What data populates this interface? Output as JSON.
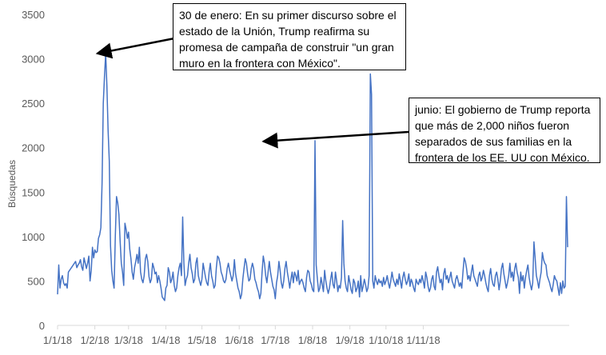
{
  "chart_data": {
    "type": "line",
    "title": "",
    "xlabel": "",
    "ylabel": "Búsquedas",
    "ylim": [
      0,
      3500
    ],
    "yticks": [
      0,
      500,
      1000,
      1500,
      2000,
      2500,
      3000,
      3500
    ],
    "x_tick_labels": [
      "1/1/18",
      "1/2/18",
      "1/3/18",
      "1/4/18",
      "1/5/18",
      "1/6/18",
      "1/7/18",
      "1/8/18",
      "1/9/18",
      "1/10/18",
      "1/11/18"
    ],
    "grid": false,
    "legend": "none",
    "line_color": "#4472c4",
    "series": [
      {
        "x_start": "2018-01-01",
        "x_interval_days": 1,
        "values": [
          350,
          680,
          420,
          520,
          560,
          480,
          450,
          470,
          420,
          600,
          620,
          640,
          660,
          680,
          700,
          720,
          650,
          680,
          700,
          740,
          660,
          620,
          760,
          700,
          640,
          700,
          780,
          500,
          620,
          880,
          760,
          850,
          820,
          830,
          980,
          1020,
          1100,
          1600,
          2500,
          2800,
          3060,
          2700,
          2200,
          1850,
          900,
          620,
          500,
          420,
          1000,
          1450,
          1380,
          1250,
          950,
          700,
          600,
          450,
          1150,
          1080,
          980,
          1050,
          860,
          750,
          600,
          520,
          650,
          720,
          800,
          700,
          880,
          600,
          520,
          480,
          560,
          750,
          800,
          720,
          550,
          480,
          520,
          700,
          650,
          580,
          600,
          480,
          560,
          500,
          420,
          320,
          300,
          280,
          420,
          450,
          650,
          600,
          480,
          520,
          600,
          450,
          380,
          420,
          560,
          650,
          700,
          560,
          1220,
          700,
          450,
          520,
          560,
          700,
          800,
          650,
          580,
          480,
          520,
          700,
          760,
          560,
          500,
          450,
          520,
          700,
          620,
          540,
          480,
          450,
          600,
          700,
          560,
          500,
          420,
          450,
          650,
          780,
          760,
          700,
          600,
          560,
          500,
          480,
          520,
          640,
          700,
          620,
          560,
          500,
          560,
          740,
          580,
          500,
          420,
          380,
          300,
          350,
          520,
          640,
          750,
          700,
          580,
          500,
          520,
          640,
          700,
          640,
          520,
          480,
          420,
          380,
          300,
          360,
          600,
          780,
          700,
          560,
          480,
          600,
          720,
          600,
          520,
          440,
          400,
          300,
          480,
          560,
          720,
          620,
          480,
          420,
          500,
          640,
          720,
          600,
          520,
          420,
          520,
          600,
          480,
          600,
          560,
          500,
          620,
          460,
          500,
          520,
          480,
          420,
          380,
          540,
          620,
          600,
          500,
          460,
          400,
          380,
          2080,
          680,
          520,
          380,
          420,
          540,
          460,
          380,
          620,
          500,
          420,
          360,
          420,
          520,
          600,
          460,
          420,
          600,
          500,
          380,
          450,
          420,
          540,
          1180,
          700,
          500,
          420,
          380,
          560,
          480,
          400,
          360,
          520,
          480,
          380,
          420,
          500,
          320,
          560,
          380,
          440,
          520,
          460,
          380,
          420,
          560,
          2830,
          2600,
          500,
          420,
          560,
          500,
          460,
          520,
          480,
          500,
          440,
          540,
          460,
          500,
          560,
          480,
          420,
          500,
          600,
          520,
          480,
          440,
          520,
          460,
          580,
          500,
          420,
          540,
          600,
          520,
          460,
          500,
          580,
          440,
          520,
          480,
          420,
          380,
          520,
          480,
          460,
          520,
          480,
          560,
          500,
          420,
          600,
          540,
          440,
          380,
          420,
          520,
          560,
          440,
          400,
          600,
          660,
          560,
          480,
          520,
          400,
          580,
          640,
          520,
          560,
          480,
          540,
          600,
          500,
          460,
          420,
          520,
          560,
          500,
          440,
          480,
          420,
          600,
          760,
          720,
          640,
          520,
          560,
          500,
          600,
          680,
          560,
          520,
          480,
          440,
          560,
          600,
          500,
          540,
          620,
          560,
          480,
          420,
          380,
          560,
          640,
          520,
          460,
          440,
          560,
          600,
          520,
          400,
          500,
          640,
          700,
          580,
          500,
          420,
          480,
          560,
          700,
          540,
          600,
          500,
          640,
          700,
          600,
          540,
          360,
          600,
          500,
          560,
          420,
          540,
          620,
          680,
          540,
          460,
          400,
          480,
          940,
          760,
          560,
          500,
          420,
          520,
          600,
          820,
          740,
          700,
          680,
          560,
          520,
          480,
          420,
          380,
          460,
          560,
          520,
          500,
          420,
          340,
          480,
          360,
          500,
          420,
          440,
          1450,
          880
        ]
      }
    ],
    "annotations": [
      {
        "lines": [
          "30 de enero: En su primer discurso sobre el",
          "estado de la Unión, Trump reafirma su",
          "promesa de campaña de construir \"un gran",
          "muro en la frontera con México\"."
        ],
        "x": "2018-01-30",
        "y": 3060
      },
      {
        "lines": [
          "junio: El gobierno de Trump reporta",
          "que más de 2,000 niños fueron",
          "separados de sus familias en la",
          "frontera de los EE. UU con México."
        ],
        "x": "2018-06-17",
        "y": 2080
      }
    ]
  }
}
